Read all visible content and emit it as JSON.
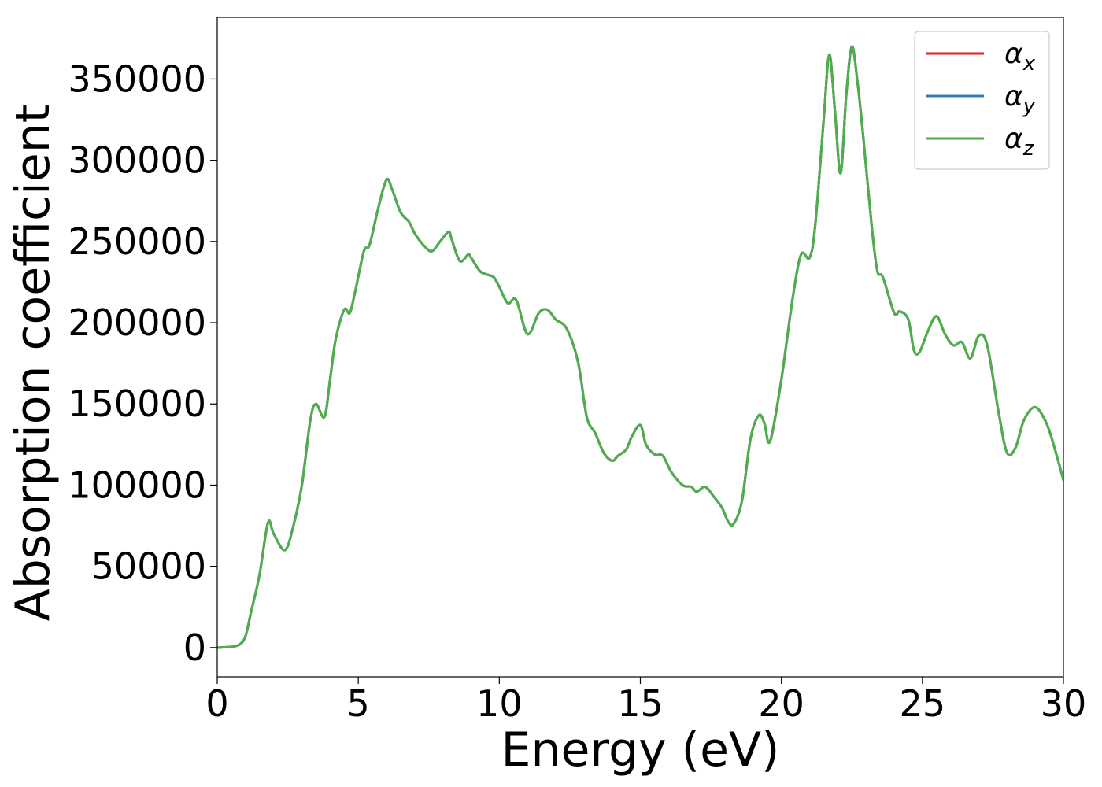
{
  "chart_data": {
    "type": "line",
    "title": "",
    "xlabel": "Energy (eV)",
    "ylabel": "Absorption coefficient",
    "xlim": [
      0,
      30
    ],
    "ylim": [
      -18000,
      388000
    ],
    "xticks": [
      0,
      5,
      10,
      15,
      20,
      25,
      30
    ],
    "yticks": [
      0,
      50000,
      100000,
      150000,
      200000,
      250000,
      300000,
      350000
    ],
    "grid": false,
    "legend_position": "top-right",
    "x": [
      0,
      0.5,
      0.8,
      1.0,
      1.2,
      1.5,
      1.8,
      2.0,
      2.4,
      2.7,
      3.0,
      3.3,
      3.5,
      3.8,
      4.0,
      4.2,
      4.5,
      4.7,
      4.9,
      5.2,
      5.4,
      5.7,
      6.0,
      6.2,
      6.5,
      6.8,
      7.0,
      7.3,
      7.6,
      7.9,
      8.2,
      8.3,
      8.6,
      8.9,
      9.0,
      9.3,
      9.5,
      9.8,
      10.0,
      10.3,
      10.6,
      11.0,
      11.4,
      11.7,
      12.0,
      12.4,
      12.8,
      13.1,
      13.4,
      13.7,
      14.0,
      14.2,
      14.5,
      14.7,
      15.0,
      15.2,
      15.5,
      15.8,
      16.1,
      16.5,
      16.8,
      17.0,
      17.3,
      17.6,
      17.9,
      18.1,
      18.3,
      18.6,
      18.9,
      19.2,
      19.4,
      19.6,
      20.0,
      20.4,
      20.7,
      21.0,
      21.2,
      21.5,
      21.7,
      21.9,
      22.1,
      22.3,
      22.5,
      22.7,
      22.9,
      23.2,
      23.4,
      23.6,
      24.0,
      24.2,
      24.5,
      24.7,
      24.9,
      25.2,
      25.5,
      25.8,
      26.1,
      26.4,
      26.7,
      27.0,
      27.3,
      27.7,
      28.0,
      28.3,
      28.6,
      29.0,
      29.4,
      29.7,
      30.0
    ],
    "series": [
      {
        "name": "α_x",
        "name_base": "α",
        "name_sub": "x",
        "color": "#e41a1c",
        "values": [
          0,
          500,
          2000,
          7000,
          22000,
          45000,
          77000,
          70000,
          60000,
          75000,
          100000,
          140000,
          150000,
          142000,
          165000,
          190000,
          208000,
          206000,
          220000,
          244000,
          248000,
          270000,
          288000,
          282000,
          268000,
          262000,
          255000,
          248000,
          244000,
          250000,
          256000,
          252000,
          238000,
          242000,
          240000,
          232000,
          230000,
          228000,
          222000,
          212000,
          214000,
          193000,
          206000,
          208000,
          202000,
          196000,
          175000,
          142000,
          132000,
          120000,
          115000,
          118000,
          122000,
          130000,
          137000,
          125000,
          119000,
          118000,
          108000,
          100000,
          99000,
          96000,
          99000,
          93000,
          86000,
          78000,
          76000,
          90000,
          128000,
          143000,
          138000,
          127000,
          165000,
          215000,
          242000,
          240000,
          260000,
          325000,
          365000,
          330000,
          292000,
          340000,
          370000,
          348000,
          315000,
          260000,
          232000,
          228000,
          206000,
          207000,
          202000,
          183000,
          182000,
          195000,
          204000,
          193000,
          186000,
          188000,
          178000,
          192000,
          186000,
          145000,
          120000,
          123000,
          140000,
          148000,
          138000,
          122000,
          103000
        ]
      },
      {
        "name": "α_y",
        "name_base": "α",
        "name_sub": "y",
        "color": "#377eb8",
        "values": [
          0,
          500,
          2000,
          7000,
          22000,
          45000,
          77000,
          70000,
          60000,
          75000,
          100000,
          140000,
          150000,
          142000,
          165000,
          190000,
          208000,
          206000,
          220000,
          244000,
          248000,
          270000,
          288000,
          282000,
          268000,
          262000,
          255000,
          248000,
          244000,
          250000,
          256000,
          252000,
          238000,
          242000,
          240000,
          232000,
          230000,
          228000,
          222000,
          212000,
          214000,
          193000,
          206000,
          208000,
          202000,
          196000,
          175000,
          142000,
          132000,
          120000,
          115000,
          118000,
          122000,
          130000,
          137000,
          125000,
          119000,
          118000,
          108000,
          100000,
          99000,
          96000,
          99000,
          93000,
          86000,
          78000,
          76000,
          90000,
          128000,
          143000,
          138000,
          127000,
          165000,
          215000,
          242000,
          240000,
          260000,
          325000,
          365000,
          330000,
          292000,
          340000,
          370000,
          348000,
          315000,
          260000,
          232000,
          228000,
          206000,
          207000,
          202000,
          183000,
          182000,
          195000,
          204000,
          193000,
          186000,
          188000,
          178000,
          192000,
          186000,
          145000,
          120000,
          123000,
          140000,
          148000,
          138000,
          122000,
          103000
        ]
      },
      {
        "name": "α_z",
        "name_base": "α",
        "name_sub": "z",
        "color": "#4daf4a",
        "values": [
          0,
          500,
          2000,
          7000,
          22000,
          45000,
          77000,
          70000,
          60000,
          75000,
          100000,
          140000,
          150000,
          142000,
          165000,
          190000,
          208000,
          206000,
          220000,
          244000,
          248000,
          270000,
          288000,
          282000,
          268000,
          262000,
          255000,
          248000,
          244000,
          250000,
          256000,
          252000,
          238000,
          242000,
          240000,
          232000,
          230000,
          228000,
          222000,
          212000,
          214000,
          193000,
          206000,
          208000,
          202000,
          196000,
          175000,
          142000,
          132000,
          120000,
          115000,
          118000,
          122000,
          130000,
          137000,
          125000,
          119000,
          118000,
          108000,
          100000,
          99000,
          96000,
          99000,
          93000,
          86000,
          78000,
          76000,
          90000,
          128000,
          143000,
          138000,
          127000,
          165000,
          215000,
          242000,
          240000,
          260000,
          325000,
          365000,
          330000,
          292000,
          340000,
          370000,
          348000,
          315000,
          260000,
          232000,
          228000,
          206000,
          207000,
          202000,
          183000,
          182000,
          195000,
          204000,
          193000,
          186000,
          188000,
          178000,
          192000,
          186000,
          145000,
          120000,
          123000,
          140000,
          148000,
          138000,
          122000,
          103000
        ]
      }
    ]
  }
}
